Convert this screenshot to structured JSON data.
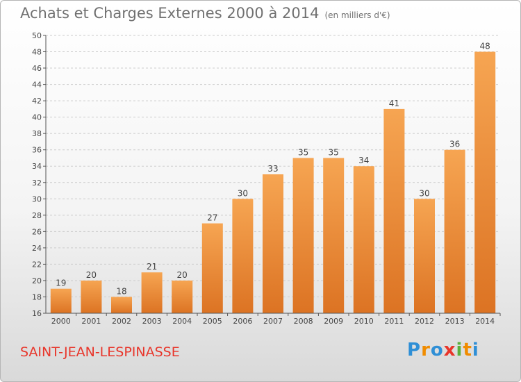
{
  "title": "Achats et Charges Externes 2000 à 2014",
  "subtitle": "(en milliers d'€)",
  "commune": "SAINT-JEAN-LESPINASSE",
  "logo": {
    "letters": [
      "P",
      "r",
      "o",
      "x",
      "i",
      "t",
      "i"
    ],
    "colors": [
      "#2f8fd6",
      "#f08c00",
      "#2f8fd6",
      "#e8352a",
      "#5ab03c",
      "#f08c00",
      "#2f8fd6"
    ]
  },
  "colors": {
    "bar_light": "#f6a552",
    "bar_dark": "#dc7323",
    "grid": "#cccccc"
  },
  "chart_data": {
    "type": "bar",
    "categories": [
      "2000",
      "2001",
      "2002",
      "2003",
      "2004",
      "2005",
      "2006",
      "2007",
      "2008",
      "2009",
      "2010",
      "2011",
      "2012",
      "2013",
      "2014"
    ],
    "values": [
      19,
      20,
      18,
      21,
      20,
      27,
      30,
      33,
      35,
      35,
      34,
      41,
      30,
      36,
      48
    ],
    "ylim": [
      16,
      50
    ],
    "yticks": [
      16,
      18,
      20,
      22,
      24,
      26,
      28,
      30,
      32,
      34,
      36,
      38,
      40,
      42,
      44,
      46,
      48,
      50
    ],
    "grid": "horizontal-dashed",
    "legend": "none"
  }
}
